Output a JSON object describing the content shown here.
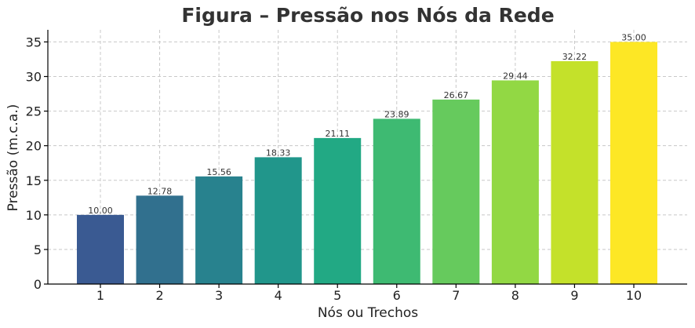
{
  "chart_data": {
    "type": "bar",
    "title": "Figura – Pressão nos Nós da Rede",
    "xlabel": "Nós ou Trechos",
    "ylabel": "Pressão (m.c.a.)",
    "categories": [
      "1",
      "2",
      "3",
      "4",
      "5",
      "6",
      "7",
      "8",
      "9",
      "10"
    ],
    "values": [
      10.0,
      12.78,
      15.56,
      18.33,
      21.11,
      23.89,
      26.67,
      29.44,
      32.22,
      35.0
    ],
    "value_labels": [
      "10.00",
      "12.78",
      "15.56",
      "18.33",
      "21.11",
      "23.89",
      "26.67",
      "29.44",
      "32.22",
      "35.00"
    ],
    "yticks": [
      0,
      5,
      10,
      15,
      20,
      25,
      30,
      35
    ],
    "ylim": [
      0,
      36.75
    ],
    "grid": true,
    "colors": [
      "#3a5a92",
      "#31708e",
      "#28828e",
      "#21968b",
      "#22a984",
      "#3eba72",
      "#66ca5d",
      "#92d844",
      "#c4e12a",
      "#fde725"
    ]
  }
}
